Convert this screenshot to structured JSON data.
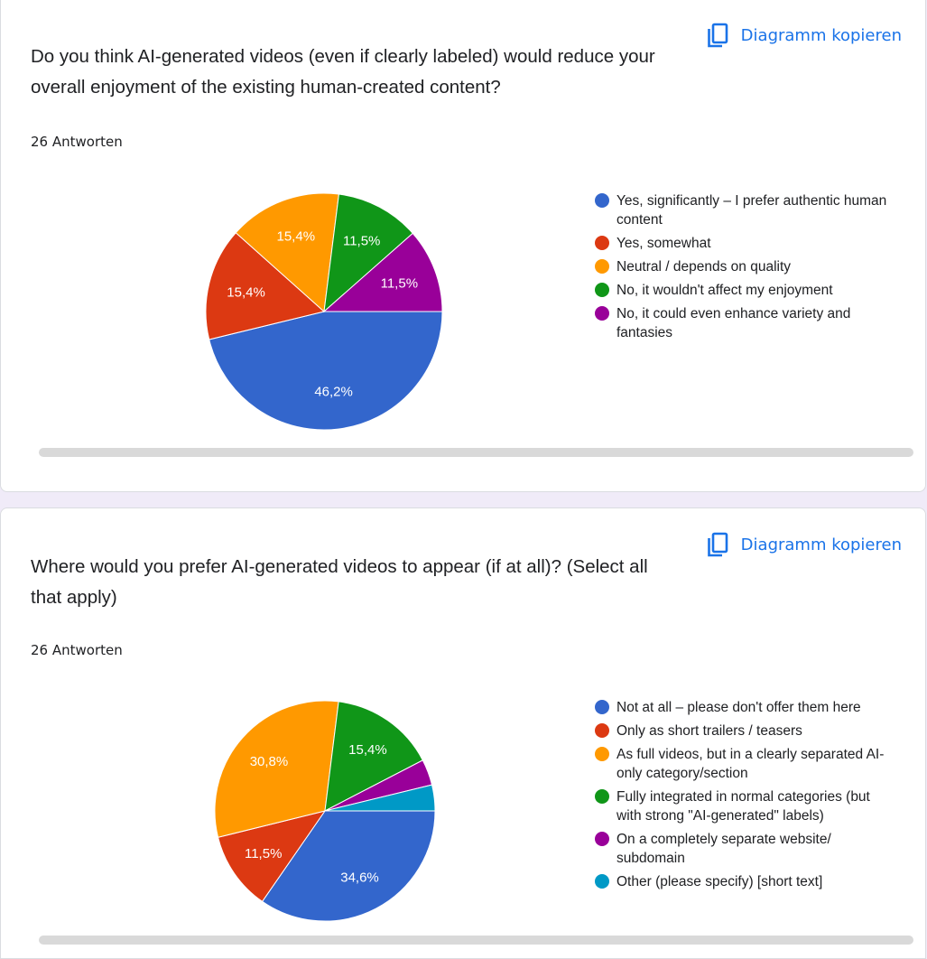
{
  "copy_label": "Diagramm kopieren",
  "colors": [
    "#3366cc",
    "#dc3912",
    "#ff9900",
    "#109618",
    "#990099",
    "#0099c6"
  ],
  "cards": [
    {
      "question": "Do you think AI-generated videos (even if clearly labeled) would reduce your overall enjoyment of the existing human-created content?",
      "count": "26 Antworten"
    },
    {
      "question": "Where would you prefer AI-generated videos to appear (if at all)? (Select all that apply)",
      "count": "26 Antworten"
    }
  ],
  "chart_data": [
    {
      "type": "pie",
      "title": "Do you think AI-generated videos (even if clearly labeled) would reduce your overall enjoyment of the existing human-created content?",
      "legend_position": "right",
      "slices": [
        {
          "label": "Yes, significantly – I prefer authentic human content",
          "value": 46.2,
          "display": "46,2%",
          "color": "#3366cc"
        },
        {
          "label": "Yes, somewhat",
          "value": 15.4,
          "display": "15,4%",
          "color": "#dc3912"
        },
        {
          "label": "Neutral / depends on quality",
          "value": 15.4,
          "display": "15,4%",
          "color": "#ff9900"
        },
        {
          "label": "No, it wouldn't affect my enjoyment",
          "value": 11.5,
          "display": "11,5%",
          "color": "#109618"
        },
        {
          "label": "No, it could even enhance variety and fantasies",
          "value": 11.5,
          "display": "11,5%",
          "color": "#990099"
        }
      ]
    },
    {
      "type": "pie",
      "title": "Where would you prefer AI-generated videos to appear (if at all)? (Select all that apply)",
      "legend_position": "right",
      "slices": [
        {
          "label": "Not at all – please don't offer them here",
          "value": 34.6,
          "display": "34,6%",
          "color": "#3366cc"
        },
        {
          "label": "Only as short trailers / teasers",
          "value": 11.5,
          "display": "11,5%",
          "color": "#dc3912"
        },
        {
          "label": "As full videos, but in a clearly separated AI-only category/section",
          "value": 30.8,
          "display": "30,8%",
          "color": "#ff9900"
        },
        {
          "label": "Fully integrated in normal categories (but with strong \"AI-generated\" labels)",
          "value": 15.4,
          "display": "15,4%",
          "color": "#109618"
        },
        {
          "label": "On a completely separate website/ subdomain",
          "value": 3.8,
          "display": "",
          "color": "#990099"
        },
        {
          "label": "Other (please specify) [short text]",
          "value": 3.8,
          "display": "",
          "color": "#0099c6"
        }
      ]
    }
  ]
}
